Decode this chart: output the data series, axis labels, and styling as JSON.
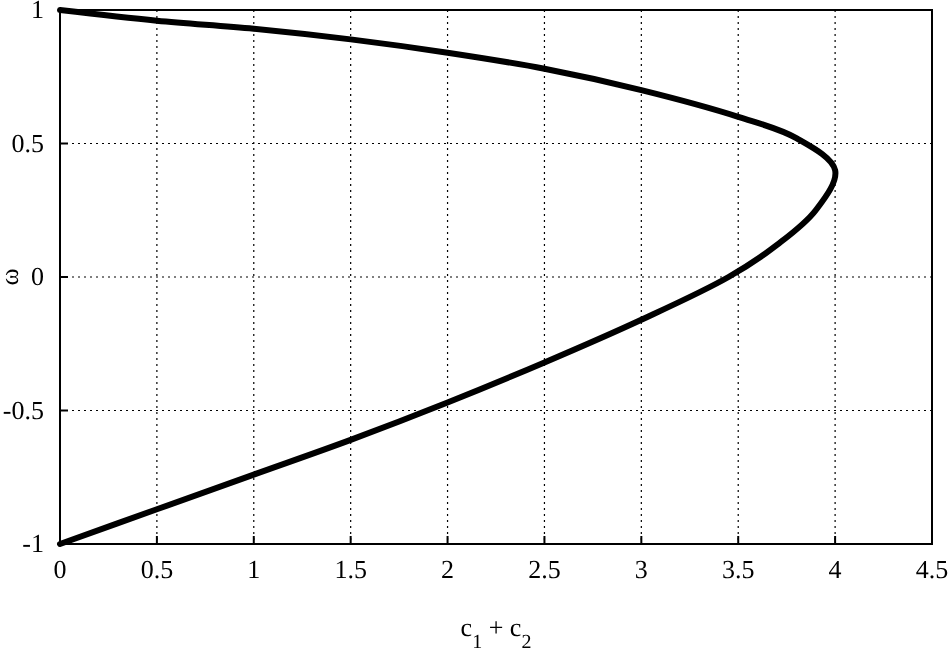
{
  "chart_data": {
    "type": "line",
    "xlabel": "c$_{1}$ + c$_{2}$",
    "ylabel": "ω",
    "xlim": [
      0,
      4.5
    ],
    "ylim": [
      -1,
      1
    ],
    "xticks": [
      0,
      0.5,
      1,
      1.5,
      2,
      2.5,
      3,
      3.5,
      4,
      4.5
    ],
    "yticks": [
      -1,
      -0.5,
      0,
      0.5,
      1
    ],
    "grid": true,
    "marker": "none",
    "line_style": "solid",
    "series": [
      {
        "color": "#000000",
        "x": [
          0,
          0.5,
          1,
          1.5,
          2,
          2.5,
          3,
          3.5,
          3.8,
          4,
          3.9,
          3.7,
          3.45,
          3,
          2.5,
          2,
          1.5,
          1,
          0.5,
          0
        ],
        "values": [
          1,
          0.96,
          0.93,
          0.89,
          0.84,
          0.78,
          0.7,
          0.6,
          0.52,
          0.4,
          0.25,
          0.12,
          0,
          -0.16,
          -0.32,
          -0.47,
          -0.61,
          -0.74,
          -0.87,
          -1
        ]
      }
    ]
  }
}
